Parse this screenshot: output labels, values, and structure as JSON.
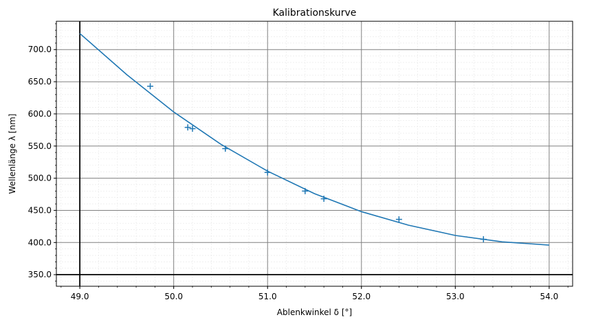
{
  "chart_data": {
    "type": "scatter",
    "title": "Kalibrationskurve",
    "xlabel": "Ablenkwinkel δ [°]",
    "ylabel": "Wellenlänge λ [nm]",
    "xlim": [
      48.75,
      54.25
    ],
    "ylim": [
      332,
      744
    ],
    "xticks": [
      49.0,
      50.0,
      51.0,
      52.0,
      53.0,
      54.0
    ],
    "xtick_labels": [
      "49.0",
      "50.0",
      "51.0",
      "52.0",
      "53.0",
      "54.0"
    ],
    "yticks": [
      350,
      400,
      450,
      500,
      550,
      600,
      650,
      700
    ],
    "ytick_labels": [
      "350.0",
      "400.0",
      "450.0",
      "500.0",
      "550.0",
      "600.0",
      "650.0",
      "700.0"
    ],
    "grid": true,
    "minor_grid": true,
    "reference_lines": {
      "vertical_x": 49.0,
      "horizontal_y": 350
    },
    "color": "#1f77b4",
    "series": [
      {
        "kind": "scatter",
        "marker": "plus",
        "points": [
          {
            "x": 49.75,
            "y": 643
          },
          {
            "x": 50.15,
            "y": 579
          },
          {
            "x": 50.2,
            "y": 577
          },
          {
            "x": 50.55,
            "y": 546
          },
          {
            "x": 51.0,
            "y": 509
          },
          {
            "x": 51.4,
            "y": 480
          },
          {
            "x": 51.6,
            "y": 468
          },
          {
            "x": 52.4,
            "y": 436
          },
          {
            "x": 53.3,
            "y": 405
          }
        ]
      },
      {
        "kind": "line",
        "points": [
          {
            "x": 49.0,
            "y": 725
          },
          {
            "x": 49.5,
            "y": 661
          },
          {
            "x": 50.0,
            "y": 603
          },
          {
            "x": 50.5,
            "y": 553
          },
          {
            "x": 51.0,
            "y": 511
          },
          {
            "x": 51.5,
            "y": 476
          },
          {
            "x": 52.0,
            "y": 448
          },
          {
            "x": 52.5,
            "y": 427
          },
          {
            "x": 53.0,
            "y": 411
          },
          {
            "x": 53.5,
            "y": 401
          },
          {
            "x": 54.0,
            "y": 396
          }
        ]
      }
    ]
  }
}
